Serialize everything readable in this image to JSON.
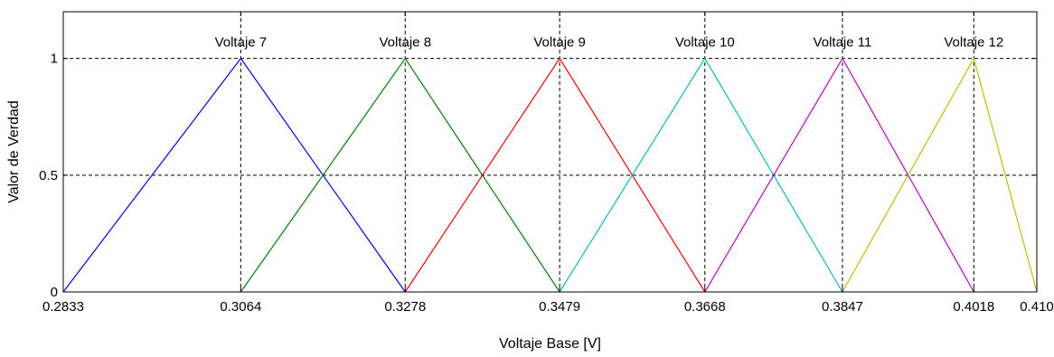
{
  "chart_data": {
    "type": "line",
    "xlabel": "Voltaje Base [V]",
    "ylabel": "Valor de Verdad",
    "xlim": [
      0.2833,
      0.41
    ],
    "ylim": [
      0,
      1.2
    ],
    "grid": true,
    "xticks": [
      0.2833,
      0.3064,
      0.3278,
      0.3479,
      0.3668,
      0.3847,
      0.4018,
      0.41
    ],
    "xtick_labels": [
      "0.2833",
      "0.3064",
      "0.3278",
      "0.3479",
      "0.3668",
      "0.3847",
      "0.4018",
      "0.410"
    ],
    "yticks": [
      0,
      0.5,
      1
    ],
    "ytick_labels": [
      "0",
      "0.5",
      "1"
    ],
    "series": [
      {
        "name": "Voltaje 7",
        "color": "#0000ff",
        "x": [
          0.2833,
          0.3064,
          0.3278
        ],
        "y": [
          0,
          1,
          0
        ]
      },
      {
        "name": "Voltaje 8",
        "color": "#008000",
        "x": [
          0.3064,
          0.3278,
          0.3479
        ],
        "y": [
          0,
          1,
          0
        ]
      },
      {
        "name": "Voltaje 9",
        "color": "#ff0000",
        "x": [
          0.3278,
          0.3479,
          0.3668
        ],
        "y": [
          0,
          1,
          0
        ]
      },
      {
        "name": "Voltaje 10",
        "color": "#00bfbf",
        "x": [
          0.3479,
          0.3668,
          0.3847
        ],
        "y": [
          0,
          1,
          0
        ]
      },
      {
        "name": "Voltaje 11",
        "color": "#bf00bf",
        "x": [
          0.3668,
          0.3847,
          0.4018
        ],
        "y": [
          0,
          1,
          0
        ]
      },
      {
        "name": "Voltaje 12",
        "color": "#bfbf00",
        "x": [
          0.3847,
          0.4018,
          0.41
        ],
        "y": [
          0,
          1,
          0
        ]
      }
    ]
  }
}
